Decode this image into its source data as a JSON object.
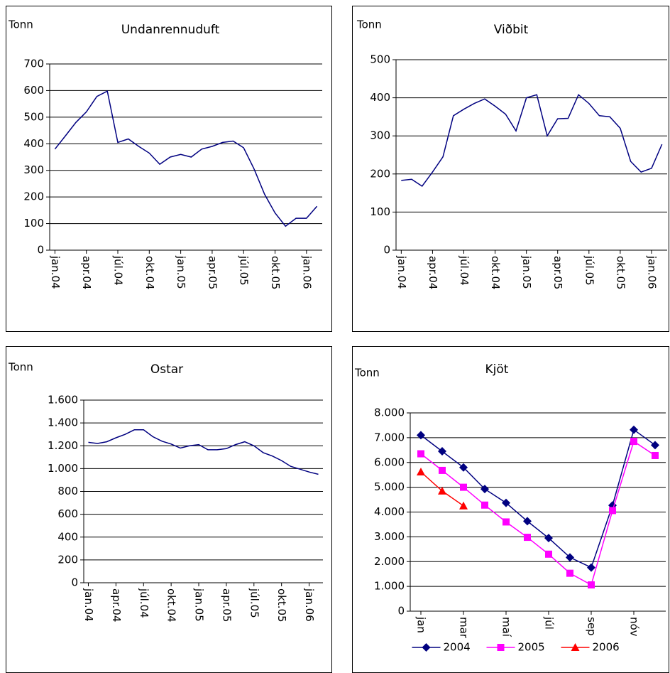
{
  "chart_data": [
    {
      "type": "line",
      "title": "Undanrennuduft",
      "ylabel": "Tonn",
      "categories": [
        "jan.04",
        null,
        null,
        "apr.04",
        null,
        null,
        "júl.04",
        null,
        null,
        "okt.04",
        null,
        null,
        "jan.05",
        null,
        null,
        "apr.05",
        null,
        null,
        "júl.05",
        null,
        null,
        "okt.05",
        null,
        null,
        "jan.06",
        null
      ],
      "series": [
        {
          "color": "#000080",
          "values": [
            380,
            430,
            480,
            520,
            578,
            598,
            405,
            418,
            390,
            365,
            323,
            350,
            360,
            350,
            380,
            390,
            405,
            410,
            385,
            305,
            210,
            140,
            90,
            120,
            120,
            165
          ]
        }
      ],
      "ylim": [
        0,
        700
      ],
      "yticks": [
        0,
        100,
        200,
        300,
        400,
        500,
        600,
        700
      ],
      "grid": true
    },
    {
      "type": "line",
      "title": "Viðbit",
      "ylabel": "Tonn",
      "categories": [
        "jan.04",
        null,
        null,
        "apr.04",
        null,
        null,
        "júl.04",
        null,
        null,
        "okt.04",
        null,
        null,
        "jan.05",
        null,
        null,
        "apr.05",
        null,
        null,
        "júl.05",
        null,
        null,
        "okt.05",
        null,
        null,
        "jan.06",
        null
      ],
      "series": [
        {
          "color": "#000080",
          "values": [
            183,
            186,
            168,
            205,
            245,
            353,
            370,
            385,
            397,
            378,
            357,
            313,
            400,
            408,
            300,
            345,
            346,
            408,
            385,
            353,
            350,
            320,
            233,
            205,
            215,
            278
          ]
        }
      ],
      "ylim": [
        0,
        500
      ],
      "yticks": [
        0,
        100,
        200,
        300,
        400,
        500
      ],
      "grid": true
    },
    {
      "type": "line",
      "title": "Ostar",
      "ylabel": "Tonn",
      "categories": [
        "jan.04",
        null,
        null,
        "apr.04",
        null,
        null,
        "júl.04",
        null,
        null,
        "okt.04",
        null,
        null,
        "jan.05",
        null,
        null,
        "apr.05",
        null,
        null,
        "júl.05",
        null,
        null,
        "okt.05",
        null,
        null,
        "jan.06",
        null
      ],
      "series": [
        {
          "color": "#000080",
          "values": [
            1230,
            1220,
            1235,
            1270,
            1300,
            1340,
            1340,
            1280,
            1240,
            1215,
            1180,
            1200,
            1210,
            1165,
            1165,
            1175,
            1210,
            1235,
            1200,
            1140,
            1110,
            1070,
            1020,
            995,
            970,
            950
          ]
        }
      ],
      "ylim": [
        0,
        1600
      ],
      "yticks": [
        0,
        200,
        400,
        600,
        800,
        {
          "value": 1000,
          "label": "1.000"
        },
        {
          "value": 1200,
          "label": "1.200"
        },
        {
          "value": 1400,
          "label": "1.400"
        },
        {
          "value": 1600,
          "label": "1.600"
        }
      ],
      "grid": true
    },
    {
      "type": "line",
      "title": "Kjöt",
      "ylabel": "Tonn",
      "categories": [
        "jan",
        null,
        "mar",
        null,
        "maí",
        null,
        "júl",
        null,
        "sep",
        null,
        "nóv",
        null
      ],
      "series": [
        {
          "name": "2004",
          "color": "#000080",
          "values": [
            7100,
            6450,
            5800,
            4930,
            4370,
            3630,
            2950,
            2170,
            1760,
            4270,
            7320,
            6700
          ]
        },
        {
          "name": "2005",
          "color": "#ff00ff",
          "values": [
            6350,
            5680,
            5000,
            4280,
            3600,
            2980,
            2300,
            1530,
            1060,
            4060,
            6850,
            6280
          ]
        },
        {
          "name": "2006",
          "color": "#ff0000",
          "values": [
            5620,
            4850,
            4250,
            null,
            null,
            null,
            null,
            null,
            null,
            null,
            null,
            null
          ]
        }
      ],
      "ylim": [
        0,
        8000
      ],
      "yticks": [
        0,
        {
          "value": 1000,
          "label": "1.000"
        },
        {
          "value": 2000,
          "label": "2.000"
        },
        {
          "value": 3000,
          "label": "3.000"
        },
        {
          "value": 4000,
          "label": "4.000"
        },
        {
          "value": 5000,
          "label": "5.000"
        },
        {
          "value": 6000,
          "label": "6.000"
        },
        {
          "value": 7000,
          "label": "7.000"
        },
        {
          "value": 8000,
          "label": "8.000"
        }
      ],
      "grid": true,
      "legend": "bottom"
    }
  ]
}
